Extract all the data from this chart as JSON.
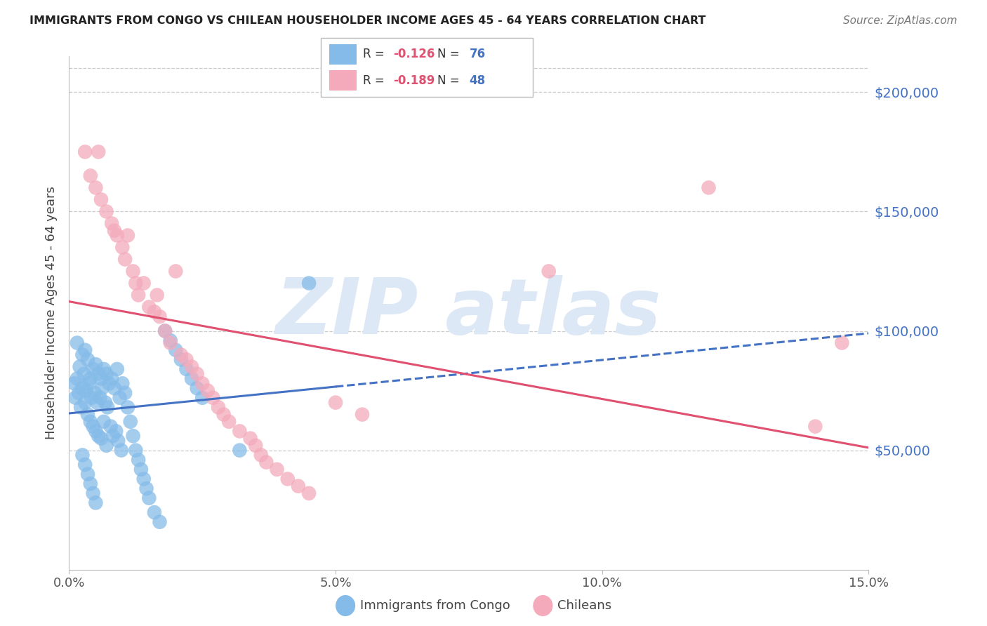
{
  "title": "IMMIGRANTS FROM CONGO VS CHILEAN HOUSEHOLDER INCOME AGES 45 - 64 YEARS CORRELATION CHART",
  "source": "Source: ZipAtlas.com",
  "ylabel": "Householder Income Ages 45 - 64 years",
  "congo_R": -0.126,
  "congo_N": 76,
  "chilean_R": -0.189,
  "chilean_N": 48,
  "congo_color": "#85BBE8",
  "chilean_color": "#F4AABB",
  "congo_line_color": "#4472C4",
  "chilean_line_color": "#E05070",
  "xlim": [
    0,
    15.0
  ],
  "ylim": [
    0,
    215000
  ],
  "yticks": [
    50000,
    100000,
    150000,
    200000
  ],
  "ytick_labels": [
    "$50,000",
    "$100,000",
    "$150,000",
    "$200,000"
  ],
  "xticks": [
    0,
    5,
    10,
    15
  ],
  "xtick_labels": [
    "0.0%",
    "5.0%",
    "10.0%",
    "15.0%"
  ],
  "grid_color": "#cccccc",
  "watermark_color": "#dce8f5",
  "congo_x": [
    0.1,
    0.12,
    0.15,
    0.15,
    0.18,
    0.2,
    0.22,
    0.25,
    0.25,
    0.28,
    0.3,
    0.3,
    0.32,
    0.35,
    0.35,
    0.38,
    0.4,
    0.4,
    0.42,
    0.45,
    0.45,
    0.48,
    0.5,
    0.5,
    0.52,
    0.55,
    0.55,
    0.58,
    0.6,
    0.6,
    0.62,
    0.65,
    0.65,
    0.68,
    0.7,
    0.7,
    0.72,
    0.75,
    0.78,
    0.8,
    0.82,
    0.85,
    0.88,
    0.9,
    0.92,
    0.95,
    0.98,
    1.0,
    1.05,
    1.1,
    1.15,
    1.2,
    1.25,
    1.3,
    1.35,
    1.4,
    1.45,
    1.5,
    1.6,
    1.7,
    1.8,
    1.9,
    2.0,
    2.1,
    2.2,
    2.3,
    2.4,
    2.5,
    3.2,
    4.5,
    0.25,
    0.3,
    0.35,
    0.4,
    0.45,
    0.5
  ],
  "congo_y": [
    78000,
    72000,
    95000,
    80000,
    74000,
    85000,
    68000,
    90000,
    76000,
    82000,
    92000,
    70000,
    75000,
    88000,
    65000,
    78000,
    80000,
    62000,
    72000,
    84000,
    60000,
    74000,
    86000,
    58000,
    70000,
    82000,
    56000,
    72000,
    80000,
    55000,
    76000,
    84000,
    62000,
    70000,
    82000,
    52000,
    68000,
    78000,
    60000,
    80000,
    56000,
    76000,
    58000,
    84000,
    54000,
    72000,
    50000,
    78000,
    74000,
    68000,
    62000,
    56000,
    50000,
    46000,
    42000,
    38000,
    34000,
    30000,
    24000,
    20000,
    100000,
    96000,
    92000,
    88000,
    84000,
    80000,
    76000,
    72000,
    50000,
    120000,
    48000,
    44000,
    40000,
    36000,
    32000,
    28000
  ],
  "chilean_x": [
    0.3,
    0.4,
    0.5,
    0.55,
    0.6,
    0.7,
    0.8,
    0.85,
    0.9,
    1.0,
    1.05,
    1.1,
    1.2,
    1.25,
    1.3,
    1.4,
    1.5,
    1.6,
    1.65,
    1.7,
    1.8,
    1.9,
    2.0,
    2.1,
    2.2,
    2.3,
    2.4,
    2.5,
    2.6,
    2.7,
    2.8,
    2.9,
    3.0,
    3.2,
    3.4,
    3.5,
    3.6,
    3.7,
    3.9,
    4.1,
    4.3,
    4.5,
    5.0,
    5.5,
    12.0,
    14.5,
    9.0,
    14.0
  ],
  "chilean_y": [
    175000,
    165000,
    160000,
    175000,
    155000,
    150000,
    145000,
    142000,
    140000,
    135000,
    130000,
    140000,
    125000,
    120000,
    115000,
    120000,
    110000,
    108000,
    115000,
    106000,
    100000,
    95000,
    125000,
    90000,
    88000,
    85000,
    82000,
    78000,
    75000,
    72000,
    68000,
    65000,
    62000,
    58000,
    55000,
    52000,
    48000,
    45000,
    42000,
    38000,
    35000,
    32000,
    70000,
    65000,
    160000,
    95000,
    125000,
    60000
  ]
}
